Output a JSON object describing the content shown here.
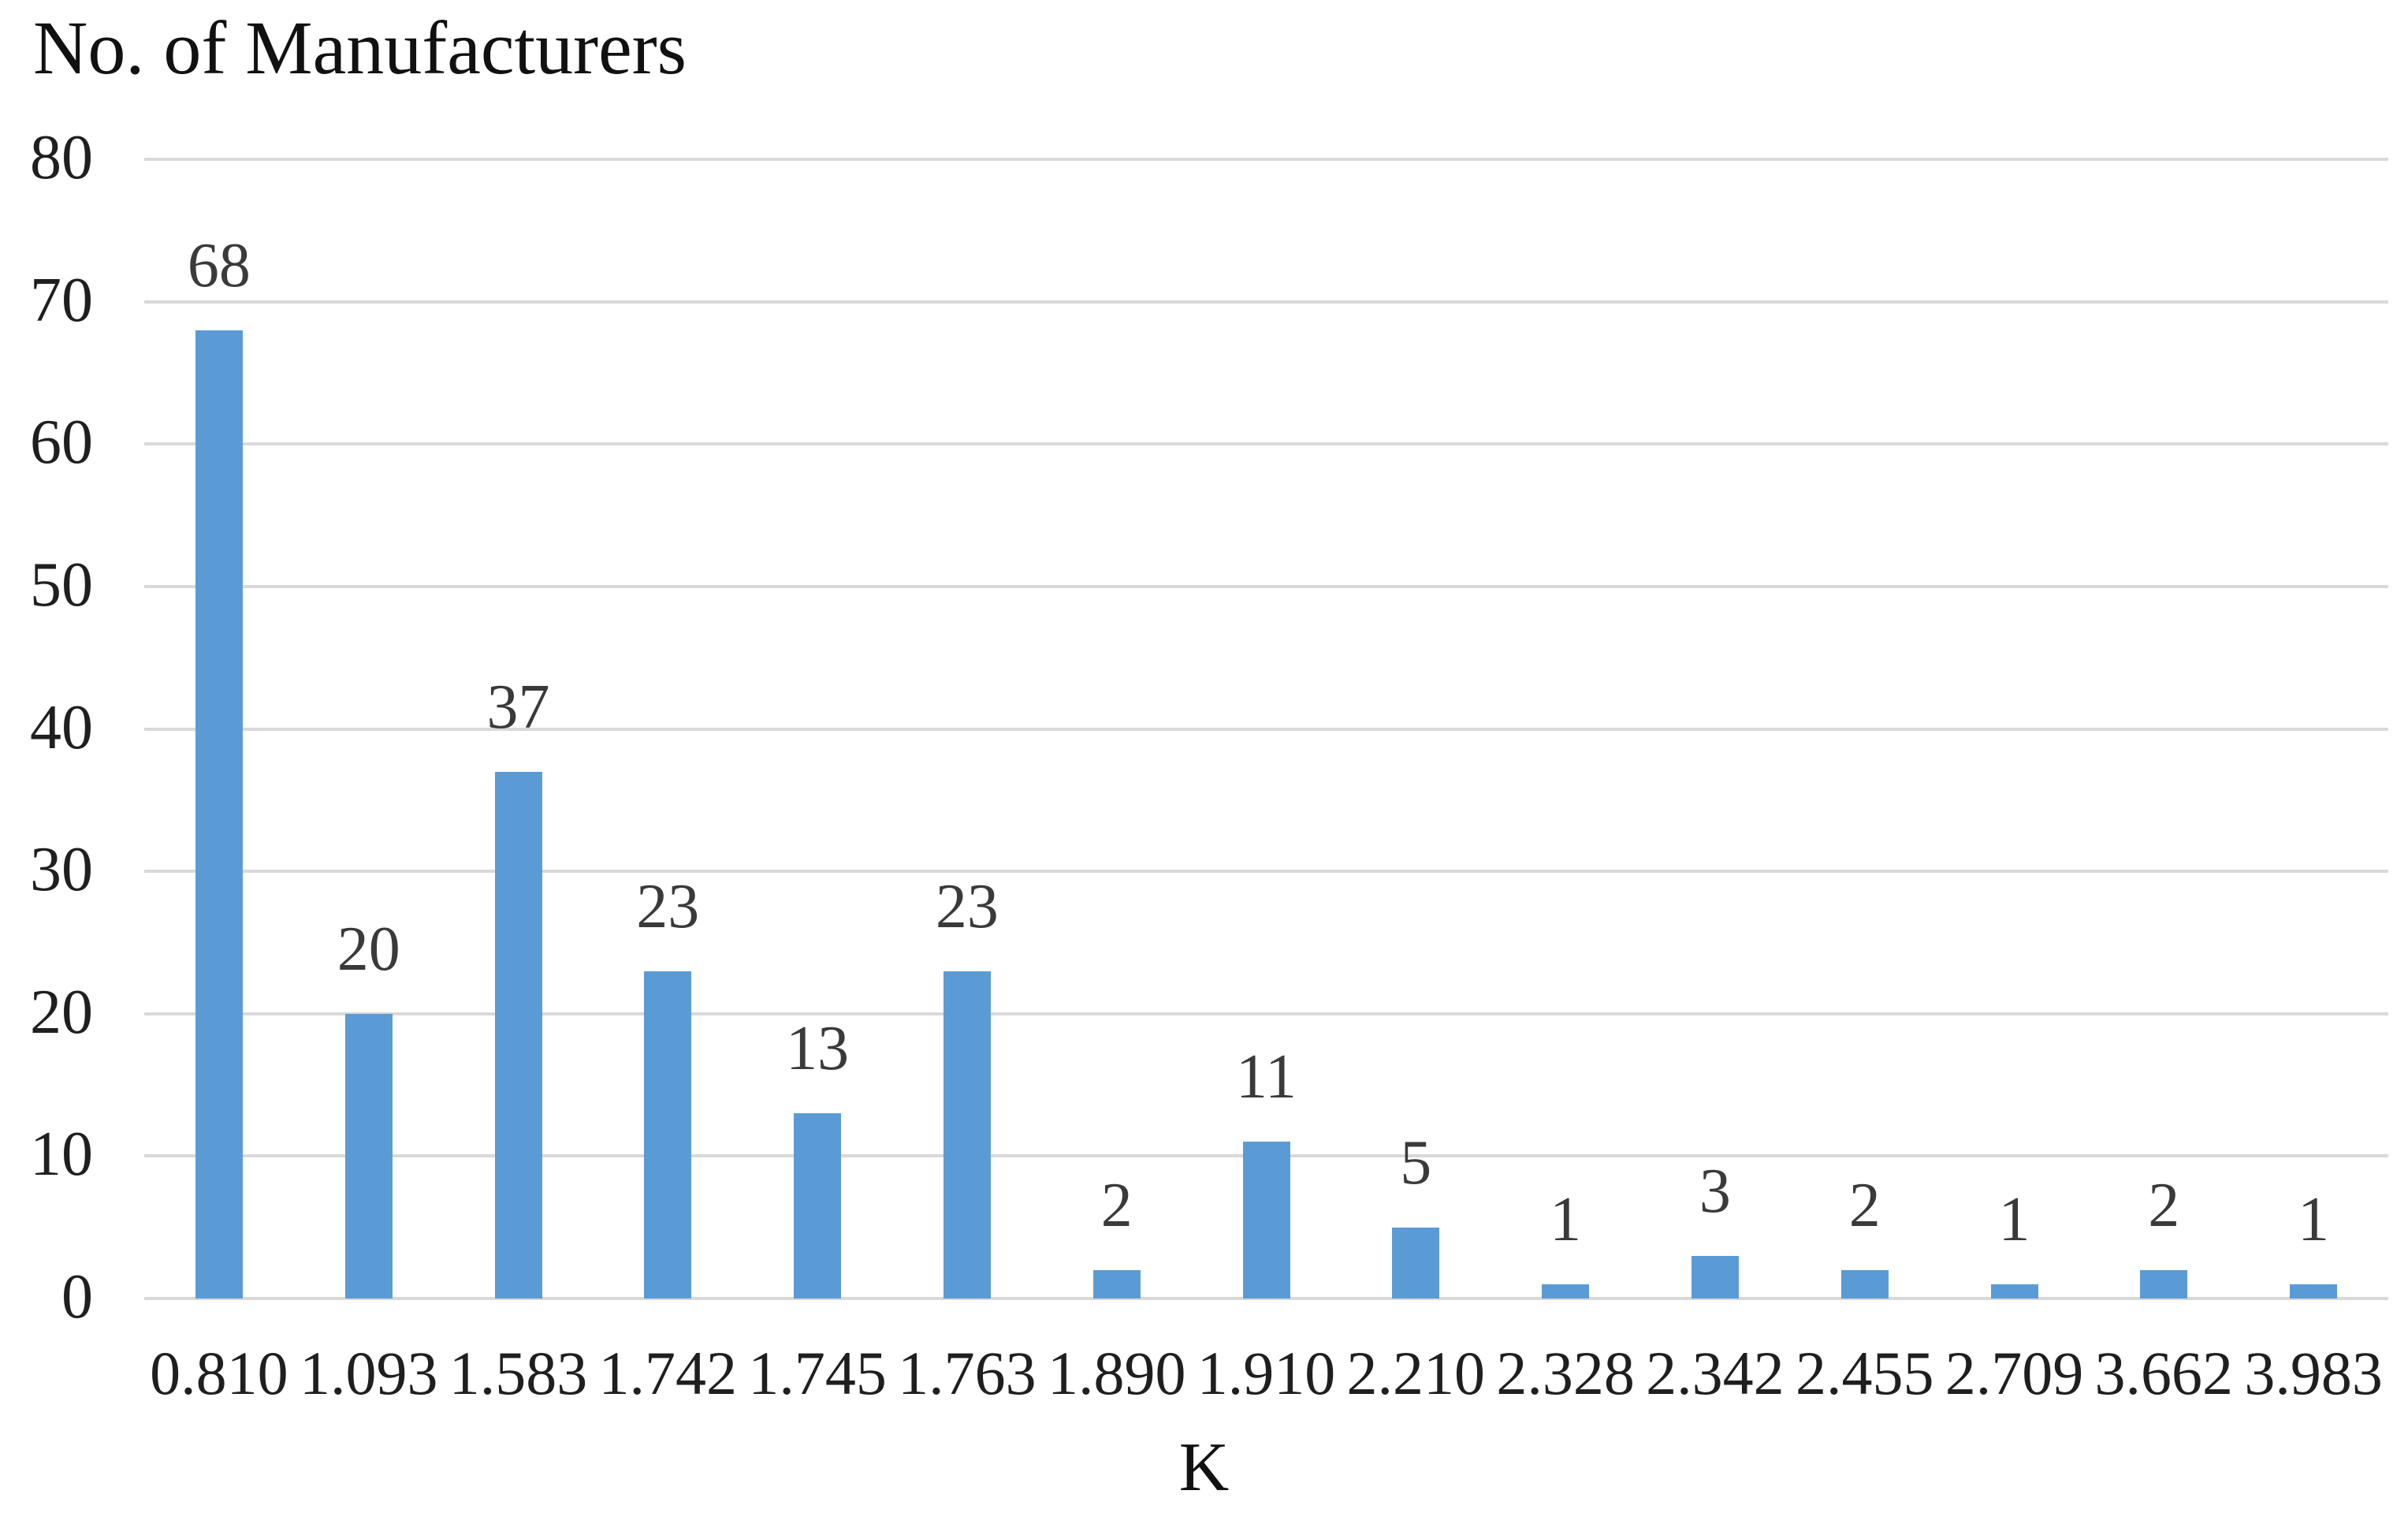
{
  "chart_data": {
    "type": "bar",
    "title": "No. of Manufacturers",
    "xlabel": "K",
    "ylabel": "",
    "categories": [
      "0.810",
      "1.093",
      "1.583",
      "1.742",
      "1.745",
      "1.763",
      "1.890",
      "1.910",
      "2.210",
      "2.328",
      "2.342",
      "2.455",
      "2.709",
      "3.662",
      "3.983"
    ],
    "values": [
      68,
      20,
      37,
      23,
      13,
      23,
      2,
      11,
      5,
      1,
      3,
      2,
      1,
      2,
      1
    ],
    "value_labels": [
      "68",
      "20",
      "37",
      "23",
      "13",
      "23",
      "2",
      "11",
      "5",
      "1",
      "3",
      "2",
      "1",
      "2",
      "1"
    ],
    "yticks": [
      0,
      10,
      20,
      30,
      40,
      50,
      60,
      70,
      80
    ],
    "ylim": [
      0,
      80
    ],
    "grid": "horizontal",
    "legend": "none",
    "series_count": 1,
    "colors": {
      "bar": "#5B9BD5",
      "gridline": "#D9D9D9",
      "value_label": "#3A3A3A",
      "tick_label": "#1F1F1F",
      "title": "#111111",
      "background": "#FFFFFF"
    }
  }
}
